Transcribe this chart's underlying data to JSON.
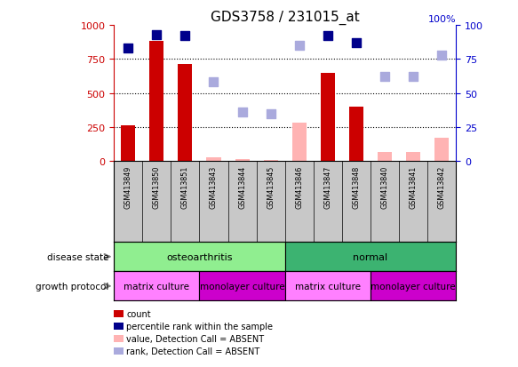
{
  "title": "GDS3758 / 231015_at",
  "samples": [
    "GSM413849",
    "GSM413850",
    "GSM413851",
    "GSM413843",
    "GSM413844",
    "GSM413845",
    "GSM413846",
    "GSM413847",
    "GSM413848",
    "GSM413840",
    "GSM413841",
    "GSM413842"
  ],
  "count_values": [
    260,
    880,
    710,
    null,
    null,
    null,
    null,
    650,
    400,
    null,
    null,
    null
  ],
  "count_absent": [
    null,
    null,
    null,
    30,
    15,
    10,
    280,
    null,
    null,
    65,
    65,
    170
  ],
  "rank_present": [
    83,
    93,
    92,
    null,
    null,
    null,
    null,
    92,
    87,
    null,
    null,
    null
  ],
  "rank_absent": [
    null,
    null,
    null,
    58,
    36,
    35,
    85,
    null,
    null,
    62,
    62,
    78
  ],
  "ylim_left": [
    0,
    1000
  ],
  "ylim_right": [
    0,
    100
  ],
  "yticks_left": [
    0,
    250,
    500,
    750,
    1000
  ],
  "yticks_right": [
    0,
    25,
    50,
    75,
    100
  ],
  "disease_state": [
    {
      "label": "osteoarthritis",
      "start": 0,
      "end": 6,
      "color": "#90EE90"
    },
    {
      "label": "normal",
      "start": 6,
      "end": 12,
      "color": "#3CB371"
    }
  ],
  "growth_protocol": [
    {
      "label": "matrix culture",
      "start": 0,
      "end": 3,
      "color": "#FF80FF"
    },
    {
      "label": "monolayer culture",
      "start": 3,
      "end": 6,
      "color": "#CC00CC"
    },
    {
      "label": "matrix culture",
      "start": 6,
      "end": 9,
      "color": "#FF80FF"
    },
    {
      "label": "monolayer culture",
      "start": 9,
      "end": 12,
      "color": "#CC00CC"
    }
  ],
  "bar_color_present": "#CC0000",
  "bar_color_absent": "#FFB3B3",
  "dot_color_present": "#00008B",
  "dot_color_absent": "#AAAADD",
  "bar_width": 0.5,
  "dot_size": 45,
  "bg_color": "#ffffff",
  "label_row_color": "#C8C8C8",
  "tick_fontsize": 8,
  "title_fontsize": 11,
  "left_yaxis_color": "#CC0000",
  "right_yaxis_color": "#0000CC",
  "legend_items": [
    {
      "color": "#CC0000",
      "label": "count",
      "style": "rect"
    },
    {
      "color": "#00008B",
      "label": "percentile rank within the sample",
      "style": "rect"
    },
    {
      "color": "#FFB3B3",
      "label": "value, Detection Call = ABSENT",
      "style": "rect"
    },
    {
      "color": "#AAAADD",
      "label": "rank, Detection Call = ABSENT",
      "style": "rect"
    }
  ]
}
